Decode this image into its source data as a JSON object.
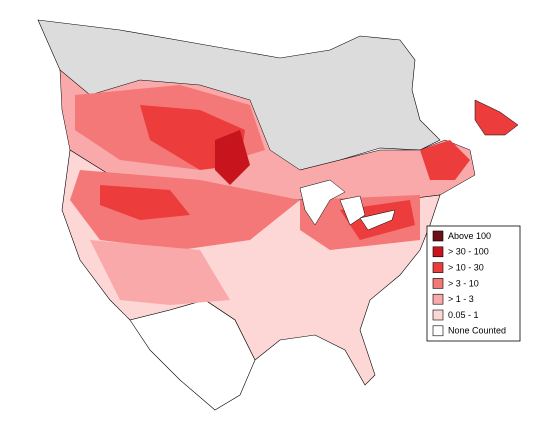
{
  "legend": {
    "items": [
      {
        "label": "Above 100",
        "color": "#6e1016"
      },
      {
        "label": "> 30 - 100",
        "color": "#c8141c"
      },
      {
        "label": "> 10 - 30",
        "color": "#ec3c3c"
      },
      {
        "label": "> 3 - 10",
        "color": "#f47878"
      },
      {
        "label": "> 1 - 3",
        "color": "#f9a9a9"
      },
      {
        "label": "0.05 - 1",
        "color": "#fdd6d6"
      },
      {
        "label": "None Counted",
        "color": "#ffffff"
      }
    ]
  }
}
